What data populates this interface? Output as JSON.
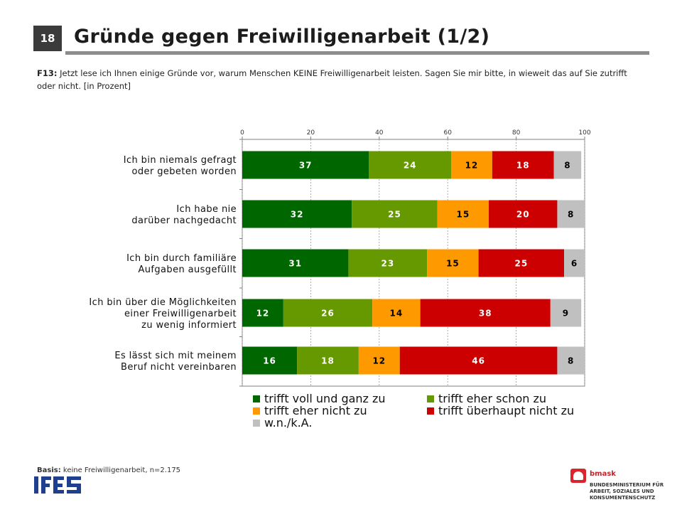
{
  "header": {
    "page_number": "18",
    "title": "Gründe gegen Freiwilligenarbeit (1/2)"
  },
  "question": {
    "label": "F13:",
    "text": "Jetzt lese ich Ihnen einige Gründe vor, warum Menschen KEINE Freiwilligenarbeit leisten. Sagen Sie mir bitte, in wieweit das auf Sie zutrifft oder nicht. [in Prozent]"
  },
  "chart_data": {
    "type": "bar",
    "orientation": "horizontal",
    "stacked": true,
    "xlim": [
      0,
      100
    ],
    "xticks": [
      "0",
      "20",
      "40",
      "60",
      "80",
      "100"
    ],
    "grid": true,
    "categories": [
      [
        "Ich bin niemals gefragt",
        "oder gebeten worden"
      ],
      [
        "Ich habe nie",
        "darüber nachgedacht"
      ],
      [
        "Ich bin durch familiäre",
        "Aufgaben ausgefüllt"
      ],
      [
        "Ich bin über die Möglichkeiten",
        "einer Freiwilligenarbeit",
        "zu wenig informiert"
      ],
      [
        "Es lässt sich mit meinem",
        "Beruf nicht vereinbaren"
      ]
    ],
    "series": [
      {
        "name": "trifft voll und ganz zu",
        "color": "#006600",
        "label_color": "#ffffff",
        "values": [
          37,
          32,
          31,
          12,
          16
        ]
      },
      {
        "name": "trifft eher schon zu",
        "color": "#669900",
        "label_color": "#ffffff",
        "values": [
          24,
          25,
          23,
          26,
          18
        ]
      },
      {
        "name": "trifft eher nicht zu",
        "color": "#ff9900",
        "label_color": "#000000",
        "values": [
          12,
          15,
          15,
          14,
          12
        ]
      },
      {
        "name": "trifft überhaupt nicht zu",
        "color": "#cc0000",
        "label_color": "#ffffff",
        "values": [
          18,
          20,
          25,
          38,
          46
        ]
      },
      {
        "name": "w.n./k.A.",
        "color": "#c0c0c0",
        "label_color": "#000000",
        "values": [
          8,
          8,
          6,
          9,
          8
        ]
      }
    ],
    "legend_position": "bottom"
  },
  "footer": {
    "basis_label": "Basis:",
    "basis_text": "keine Freiwilligenarbeit, n=2.175",
    "ifes_logo_text": "IFES",
    "bmask_name": "bmask",
    "bmask_lines": [
      "BUNDESMINISTERIUM FÜR",
      "ARBEIT, SOZIALES UND",
      "KONSUMENTENSCHUTZ"
    ]
  }
}
